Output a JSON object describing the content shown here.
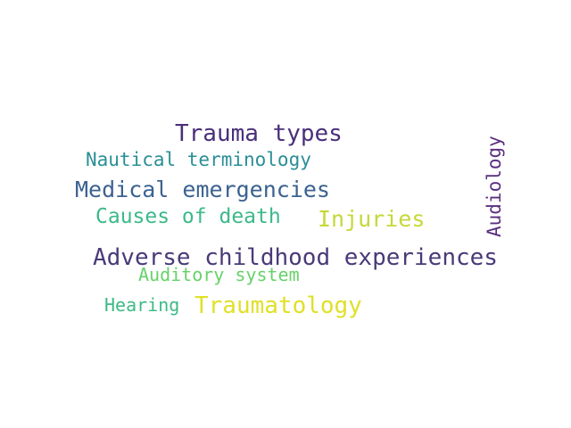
{
  "words": [
    {
      "text": "Trauma types",
      "color": "#4a2f7a"
    },
    {
      "text": "Nautical terminology",
      "color": "#2a8f96"
    },
    {
      "text": "Medical emergencies",
      "color": "#3b6290"
    },
    {
      "text": "Causes of death",
      "color": "#3cb98a"
    },
    {
      "text": "Injuries",
      "color": "#c6d83a"
    },
    {
      "text": "Adverse childhood experiences",
      "color": "#4a3a78"
    },
    {
      "text": "Auditory system",
      "color": "#66d268"
    },
    {
      "text": "Hearing",
      "color": "#3cba86"
    },
    {
      "text": "Traumatology",
      "color": "#e0e02a"
    },
    {
      "text": "Audiology",
      "color": "#5a2f80"
    }
  ]
}
